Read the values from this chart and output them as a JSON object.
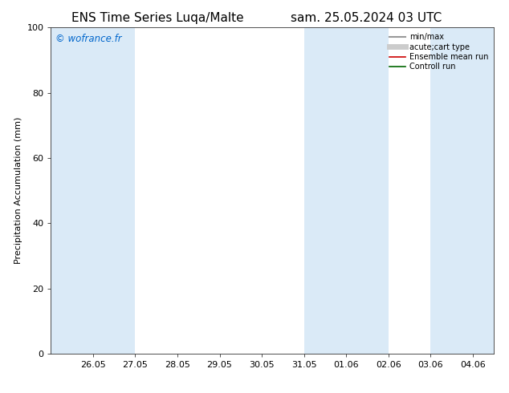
{
  "title_left": "ENS Time Series Luqa/Malte",
  "title_right": "sam. 25.05.2024 03 UTC",
  "ylabel": "Precipitation Accumulation (mm)",
  "watermark": "© wofrance.fr",
  "watermark_color": "#0066cc",
  "ylim": [
    0,
    100
  ],
  "yticks": [
    0,
    20,
    40,
    60,
    80,
    100
  ],
  "xlim": [
    25.0,
    35.5
  ],
  "xtick_positions": [
    26,
    27,
    28,
    29,
    30,
    31,
    32,
    33,
    34,
    35
  ],
  "xtick_labels": [
    "26.05",
    "27.05",
    "28.05",
    "29.05",
    "30.05",
    "31.05",
    "01.06",
    "02.06",
    "03.06",
    "04.06"
  ],
  "bg_color": "#ffffff",
  "plot_bg_color": "#ffffff",
  "shaded_bands": [
    {
      "x_start": 25.0,
      "x_end": 27.0,
      "color": "#daeaf7"
    },
    {
      "x_start": 31.0,
      "x_end": 33.0,
      "color": "#daeaf7"
    },
    {
      "x_start": 34.0,
      "x_end": 35.5,
      "color": "#daeaf7"
    }
  ],
  "legend_entries": [
    {
      "label": "min/max",
      "color": "#999999",
      "lw": 1.5,
      "style": "-"
    },
    {
      "label": "acute;cart type",
      "color": "#cccccc",
      "lw": 5,
      "style": "-"
    },
    {
      "label": "Ensemble mean run",
      "color": "#cc0000",
      "lw": 1.2,
      "style": "-"
    },
    {
      "label": "Controll run",
      "color": "#006600",
      "lw": 1.2,
      "style": "-"
    }
  ],
  "title_fontsize": 11,
  "axis_label_fontsize": 8,
  "tick_fontsize": 8
}
